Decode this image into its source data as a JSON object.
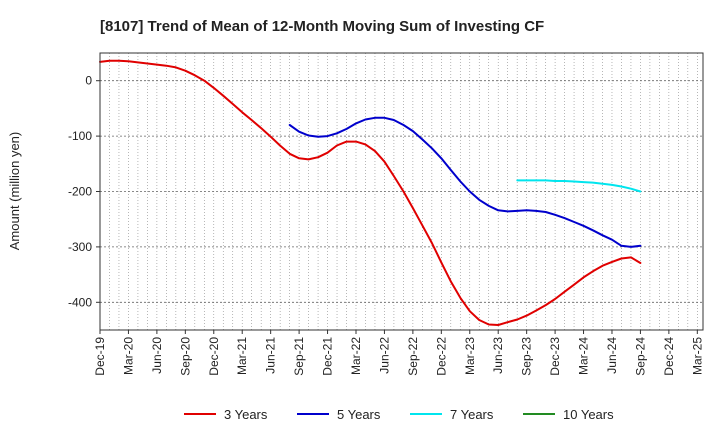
{
  "chart_data": {
    "type": "line",
    "title": "[8107]  Trend of Mean of 12-Month Moving Sum of Investing CF",
    "xlabel": "",
    "ylabel": "Amount (million yen)",
    "ylim": [
      -450,
      50
    ],
    "yticks": [
      0,
      -100,
      -200,
      -300,
      -400
    ],
    "grid": true,
    "legend_position": "bottom",
    "categories": [
      "Dec-19",
      "Mar-20",
      "Jun-20",
      "Sep-20",
      "Dec-20",
      "Mar-21",
      "Jun-21",
      "Sep-21",
      "Dec-21",
      "Mar-22",
      "Jun-22",
      "Sep-22",
      "Dec-22",
      "Mar-23",
      "Jun-23",
      "Sep-23",
      "Dec-23",
      "Mar-24",
      "Jun-24",
      "Sep-24",
      "Dec-24",
      "Mar-25"
    ],
    "series": [
      {
        "name": "3 Years",
        "color": "#e00000",
        "x": [
          0,
          0.33,
          0.67,
          1,
          1.33,
          1.67,
          2,
          2.33,
          2.67,
          3,
          3.33,
          3.67,
          4,
          4.33,
          4.67,
          5,
          5.33,
          5.67,
          6,
          6.33,
          6.67,
          7,
          7.33,
          7.67,
          8,
          8.33,
          8.67,
          9,
          9.33,
          9.67,
          10,
          10.33,
          10.67,
          11,
          11.33,
          11.67,
          12,
          12.33,
          12.67,
          13,
          13.33,
          13.67,
          14,
          14.33,
          14.67,
          15,
          15.33,
          15.67,
          16,
          16.33,
          16.67,
          17,
          17.33,
          17.67,
          18,
          18.33,
          18.67,
          19
        ],
        "values": [
          34,
          36,
          36,
          35,
          33,
          31,
          29,
          27,
          24,
          18,
          10,
          0,
          -13,
          -27,
          -42,
          -57,
          -71,
          -86,
          -101,
          -117,
          -132,
          -140,
          -142,
          -138,
          -130,
          -117,
          -110,
          -110,
          -115,
          -127,
          -146,
          -172,
          -200,
          -230,
          -261,
          -293,
          -328,
          -362,
          -392,
          -416,
          -432,
          -440,
          -441,
          -436,
          -431,
          -424,
          -415,
          -405,
          -394,
          -381,
          -368,
          -355,
          -344,
          -334,
          -327,
          -321,
          -319,
          -329
        ]
      },
      {
        "name": "5 Years",
        "color": "#0000cc",
        "x": [
          6.67,
          7,
          7.33,
          7.67,
          8,
          8.33,
          8.67,
          9,
          9.33,
          9.67,
          10,
          10.33,
          10.67,
          11,
          11.33,
          11.67,
          12,
          12.33,
          12.67,
          13,
          13.33,
          13.67,
          14,
          14.33,
          14.67,
          15,
          15.33,
          15.67,
          16,
          16.33,
          16.67,
          17,
          17.33,
          17.67,
          18,
          18.33,
          18.67,
          19
        ],
        "values": [
          -80,
          -92,
          -99,
          -101,
          -100,
          -95,
          -87,
          -77,
          -70,
          -67,
          -67,
          -71,
          -80,
          -91,
          -106,
          -122,
          -140,
          -161,
          -182,
          -200,
          -215,
          -226,
          -234,
          -236,
          -235,
          -234,
          -235,
          -237,
          -242,
          -248,
          -255,
          -262,
          -270,
          -279,
          -287,
          -298,
          -300,
          -298
        ]
      },
      {
        "name": "7 Years",
        "color": "#00e5ee",
        "x": [
          14.67,
          15,
          15.33,
          15.67,
          16,
          16.33,
          16.67,
          17,
          17.33,
          17.67,
          18,
          18.33,
          18.67,
          19
        ],
        "values": [
          -180,
          -180,
          -180,
          -180,
          -181,
          -181,
          -182,
          -183,
          -184,
          -186,
          -188,
          -191,
          -195,
          -200
        ]
      },
      {
        "name": "10 Years",
        "color": "#228b22",
        "x": [],
        "values": []
      }
    ]
  }
}
